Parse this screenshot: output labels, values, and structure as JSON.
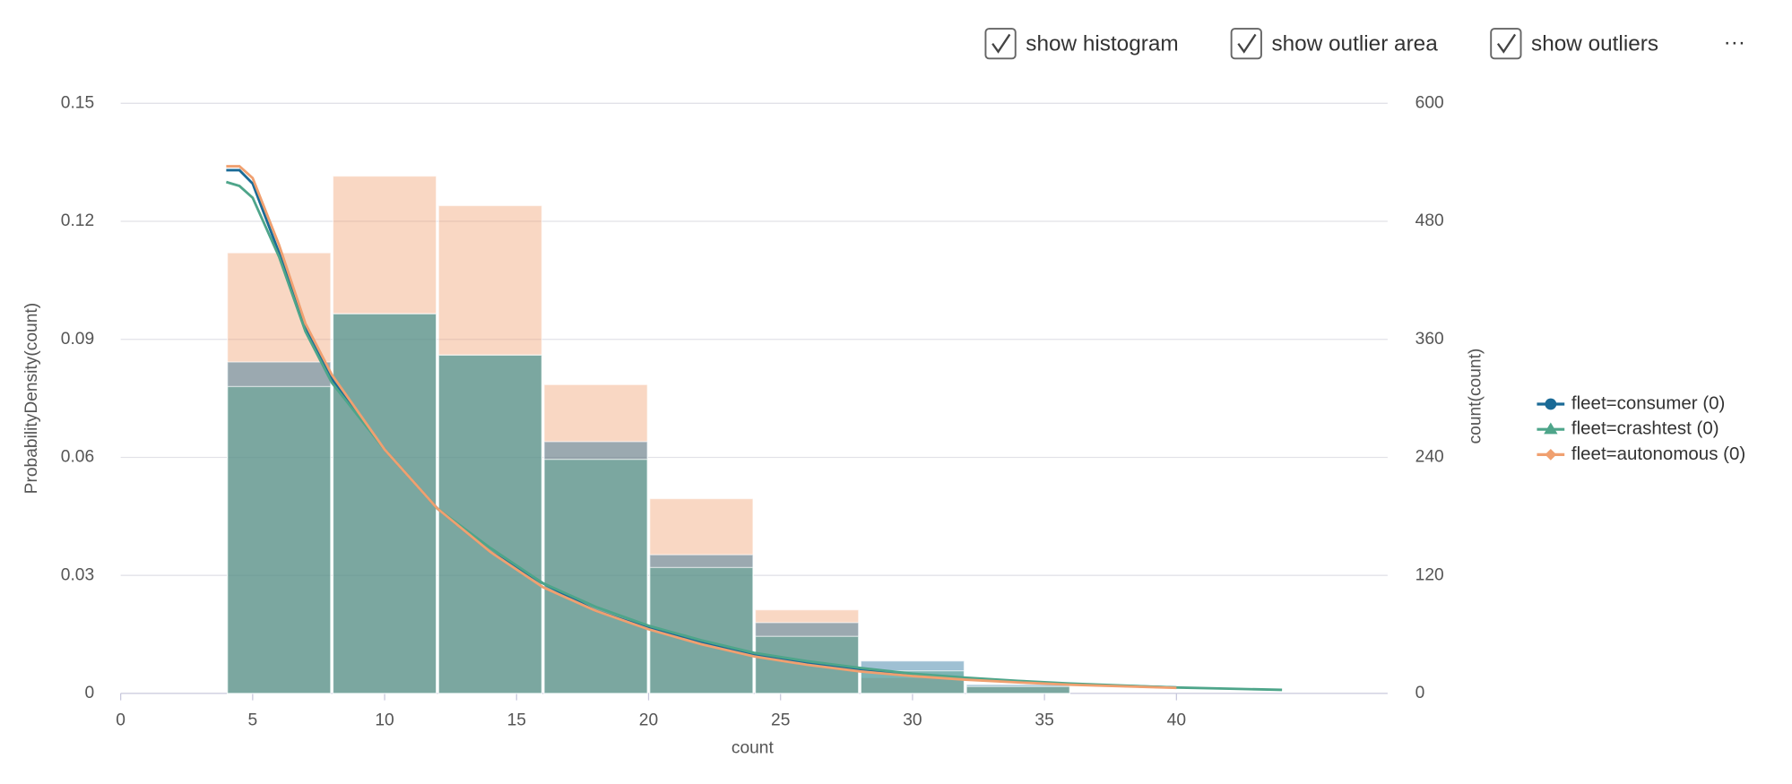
{
  "controls": {
    "checkboxes": [
      "show histogram",
      "show outlier area",
      "show outliers"
    ],
    "menu": "···"
  },
  "chart_data": {
    "type": "histogram",
    "xlabel": "count",
    "ylabel": "ProbabilityDensity(count)",
    "y2label": "count(count)",
    "xlim": [
      0,
      48
    ],
    "xticks": [
      0,
      5,
      10,
      15,
      20,
      25,
      30,
      35,
      40
    ],
    "ylim": [
      0,
      0.15
    ],
    "yticks": [
      0,
      0.03,
      0.06,
      0.09,
      0.12,
      0.15
    ],
    "y2lim": [
      0,
      600
    ],
    "y2ticks": [
      0,
      120,
      240,
      360,
      480,
      600
    ],
    "grid": true,
    "legend": "right",
    "bins": [
      4,
      8,
      12,
      16,
      20,
      24,
      28,
      32,
      36
    ],
    "series": [
      {
        "name": "fleet=consumer (0)",
        "color": "#1a6a96",
        "marker": "circle",
        "counts": [
          337,
          386,
          344,
          256,
          141,
          72,
          33,
          9
        ],
        "density_x": [
          4,
          4.5,
          5,
          6,
          7,
          8,
          10,
          12,
          14,
          16,
          18,
          20,
          22,
          24,
          26,
          28,
          30,
          32,
          34,
          36,
          38,
          40
        ],
        "density": [
          0.133,
          0.133,
          0.1296,
          0.112,
          0.093,
          0.08,
          0.062,
          0.047,
          0.036,
          0.028,
          0.021,
          0.0166,
          0.013,
          0.0099,
          0.0078,
          0.0061,
          0.0048,
          0.0038,
          0.003,
          0.0023,
          0.0019,
          0.0015
        ]
      },
      {
        "name": "fleet=crashtest (0)",
        "color": "#4ea58a",
        "marker": "triangle",
        "counts": [
          312,
          386,
          344,
          238,
          128,
          58,
          23,
          7
        ],
        "density_x": [
          4,
          4.5,
          5,
          6,
          7,
          8,
          10,
          12,
          14,
          16,
          18,
          20,
          22,
          24,
          26,
          28,
          30,
          32,
          34,
          36,
          38,
          40,
          42,
          44
        ],
        "density": [
          0.13,
          0.129,
          0.126,
          0.111,
          0.092,
          0.079,
          0.062,
          0.047,
          0.037,
          0.028,
          0.022,
          0.0172,
          0.0135,
          0.0103,
          0.0082,
          0.0065,
          0.005,
          0.004,
          0.0032,
          0.0025,
          0.002,
          0.0015,
          0.0012,
          0.0009
        ]
      },
      {
        "name": "fleet=autonomous (0)",
        "color": "#f0a070",
        "marker": "diamond",
        "counts": [
          448,
          526,
          496,
          314,
          198,
          85,
          16,
          7
        ],
        "density_x": [
          4,
          4.5,
          5,
          6,
          7,
          8,
          10,
          12,
          14,
          16,
          18,
          20,
          22,
          24,
          26,
          28,
          30,
          32,
          34,
          36,
          38,
          40
        ],
        "density": [
          0.134,
          0.134,
          0.131,
          0.114,
          0.094,
          0.081,
          0.062,
          0.047,
          0.036,
          0.027,
          0.021,
          0.0163,
          0.0125,
          0.0094,
          0.0073,
          0.0056,
          0.0044,
          0.0035,
          0.0028,
          0.0022,
          0.0018,
          0.0014
        ]
      }
    ]
  }
}
